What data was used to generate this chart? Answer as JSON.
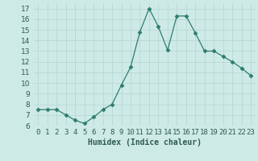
{
  "x": [
    0,
    1,
    2,
    3,
    4,
    5,
    6,
    7,
    8,
    9,
    10,
    11,
    12,
    13,
    14,
    15,
    16,
    17,
    18,
    19,
    20,
    21,
    22,
    23
  ],
  "y": [
    7.5,
    7.5,
    7.5,
    7.0,
    6.5,
    6.2,
    6.8,
    7.5,
    8.0,
    9.8,
    11.5,
    14.8,
    17.0,
    15.3,
    13.1,
    16.3,
    16.3,
    14.7,
    13.0,
    13.0,
    12.5,
    12.0,
    11.4,
    10.7
  ],
  "line_color": "#2d7d6e",
  "marker": "D",
  "marker_size": 2.5,
  "bg_color": "#ceeae6",
  "grid_color": "#b8d8d4",
  "xlabel": "Humidex (Indice chaleur)",
  "ylim": [
    6,
    17.5
  ],
  "xlim": [
    -0.5,
    23.5
  ],
  "yticks": [
    6,
    7,
    8,
    9,
    10,
    11,
    12,
    13,
    14,
    15,
    16,
    17
  ],
  "xtick_labels": [
    "0",
    "1",
    "2",
    "3",
    "4",
    "5",
    "6",
    "7",
    "8",
    "9",
    "10",
    "11",
    "12",
    "13",
    "14",
    "15",
    "16",
    "17",
    "18",
    "19",
    "20",
    "21",
    "22",
    "23"
  ],
  "font_size_label": 7,
  "font_size_tick": 6.5
}
